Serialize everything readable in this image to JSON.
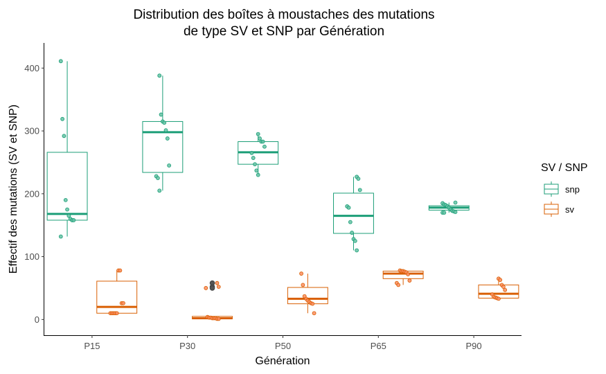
{
  "chart_data": {
    "type": "box",
    "title_lines": [
      "Distribution des boîtes à moustaches des mutations",
      "de type SV et SNP par Génération"
    ],
    "xlabel": "Génération",
    "ylabel": "Effectif des mutations (SV et SNP)",
    "categories": [
      "P15",
      "P30",
      "P50",
      "P65",
      "P90"
    ],
    "yticks": [
      0,
      100,
      200,
      300,
      400
    ],
    "ylim": [
      -25,
      440
    ],
    "grid": false,
    "legend": {
      "title": "SV / SNP",
      "placement": "right",
      "entries": [
        {
          "name": "snp",
          "color": "#1b9e77"
        },
        {
          "name": "sv",
          "color": "#d95f02"
        }
      ]
    },
    "series": [
      {
        "name": "snp",
        "color": "#1b9e77",
        "point_fill": "#66c2a5",
        "boxes": [
          {
            "category": "P15",
            "whisker_low": 132,
            "q1": 158,
            "median": 168,
            "q3": 266,
            "whisker_high": 411,
            "outliers": [],
            "points": [
              411,
              319,
              292,
              190,
              175,
              165,
              160,
              158,
              158,
              132
            ]
          },
          {
            "category": "P30",
            "whisker_low": 205,
            "q1": 234,
            "median": 298,
            "q3": 315,
            "whisker_high": 388,
            "outliers": [],
            "points": [
              388,
              326,
              315,
              313,
              301,
              288,
              245,
              228,
              225,
              205
            ]
          },
          {
            "category": "P50",
            "whisker_low": 230,
            "q1": 247,
            "median": 266,
            "q3": 283,
            "whisker_high": 295,
            "outliers": [],
            "points": [
              295,
              288,
              283,
              283,
              275,
              265,
              257,
              247,
              237,
              230
            ]
          },
          {
            "category": "P65",
            "whisker_low": 110,
            "q1": 137,
            "median": 165,
            "q3": 201,
            "whisker_high": 227,
            "outliers": [],
            "points": [
              227,
              224,
              206,
              180,
              178,
              155,
              138,
              128,
              125,
              110
            ]
          },
          {
            "category": "P90",
            "whisker_low": 170,
            "q1": 174,
            "median": 178,
            "q3": 181,
            "whisker_high": 186,
            "outliers": [],
            "points": [
              186,
              185,
              183,
              182,
              180,
              178,
              175,
              173,
              172,
              171,
              170,
              170
            ]
          }
        ]
      },
      {
        "name": "sv",
        "color": "#d95f02",
        "point_fill": "#fc8d62",
        "boxes": [
          {
            "category": "P15",
            "whisker_low": 10,
            "q1": 10,
            "median": 20,
            "q3": 61,
            "whisker_high": 78,
            "outliers": [],
            "points": [
              78,
              78,
              26,
              26,
              10,
              10,
              10,
              10,
              10
            ]
          },
          {
            "category": "P30",
            "whisker_low": 0,
            "q1": 1,
            "median": 2,
            "q3": 5,
            "whisker_high": 5,
            "outliers": [
              58,
              52,
              50
            ],
            "points": [
              58,
              52,
              50,
              4,
              3,
              3,
              2,
              2,
              2,
              1,
              1
            ]
          },
          {
            "category": "P50",
            "whisker_low": 10,
            "q1": 25,
            "median": 33,
            "q3": 51,
            "whisker_high": 73,
            "outliers": [],
            "points": [
              73,
              55,
              37,
              33,
              30,
              28,
              26,
              25,
              10
            ]
          },
          {
            "category": "P65",
            "whisker_low": 55,
            "q1": 65,
            "median": 73,
            "q3": 77,
            "whisker_high": 78,
            "outliers": [],
            "points": [
              78,
              77,
              77,
              76,
              75,
              72,
              62,
              58,
              55
            ]
          },
          {
            "category": "P90",
            "whisker_low": 33,
            "q1": 34,
            "median": 41,
            "q3": 55,
            "whisker_high": 65,
            "outliers": [],
            "points": [
              65,
              63,
              55,
              52,
              47,
              40,
              36,
              35,
              34,
              33
            ]
          }
        ]
      }
    ]
  }
}
